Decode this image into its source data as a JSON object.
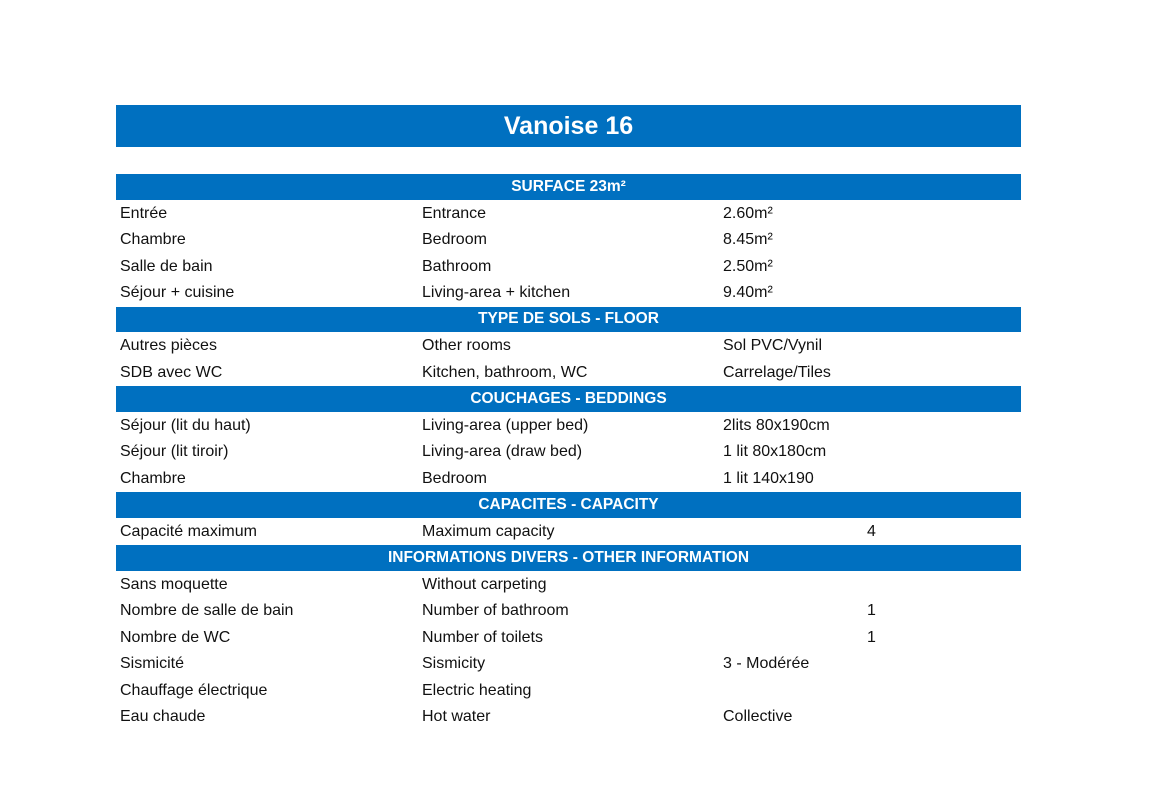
{
  "title": "Vanoise 16",
  "sections": [
    {
      "header": "SURFACE 23m²",
      "rows": [
        {
          "fr": "Entrée",
          "en": "Entrance",
          "value": "2.60m²",
          "count": ""
        },
        {
          "fr": "Chambre",
          "en": "Bedroom",
          "value": "8.45m²",
          "count": ""
        },
        {
          "fr": "Salle de bain",
          "en": "Bathroom",
          "value": "2.50m²",
          "count": ""
        },
        {
          "fr": "Séjour + cuisine",
          "en": "Living-area + kitchen",
          "value": "9.40m²",
          "count": ""
        }
      ]
    },
    {
      "header": "TYPE DE SOLS - FLOOR",
      "rows": [
        {
          "fr": "Autres pièces",
          "en": "Other rooms",
          "value": "Sol PVC/Vynil",
          "count": ""
        },
        {
          "fr": "SDB avec WC",
          "en": "Kitchen, bathroom, WC",
          "value": "Carrelage/Tiles",
          "count": ""
        }
      ]
    },
    {
      "header": "COUCHAGES - BEDDINGS",
      "rows": [
        {
          "fr": "Séjour (lit du haut)",
          "en": "Living-area (upper bed)",
          "value": "2lits 80x190cm",
          "count": ""
        },
        {
          "fr": "Séjour (lit tiroir)",
          "en": "Living-area (draw bed)",
          "value": "1 lit 80x180cm",
          "count": ""
        },
        {
          "fr": "Chambre",
          "en": "Bedroom",
          "value": "1 lit 140x190",
          "count": ""
        }
      ]
    },
    {
      "header": "CAPACITES - CAPACITY",
      "rows": [
        {
          "fr": "Capacité maximum",
          "en": "Maximum capacity",
          "value": "",
          "count": "4"
        }
      ]
    },
    {
      "header": "INFORMATIONS DIVERS - OTHER INFORMATION",
      "rows": [
        {
          "fr": "Sans moquette",
          "en": "Without carpeting",
          "value": "",
          "count": ""
        },
        {
          "fr": "Nombre de salle de bain",
          "en": "Number of bathroom",
          "value": "",
          "count": "1"
        },
        {
          "fr": "Nombre de WC",
          "en": "Number of toilets",
          "value": "",
          "count": "1"
        },
        {
          "fr": "Sismicité",
          "en": "Sismicity",
          "value": "3 - Modérée",
          "count": ""
        },
        {
          "fr": "Chauffage électrique",
          "en": "Electric heating",
          "value": "",
          "count": ""
        },
        {
          "fr": "Eau chaude",
          "en": "Hot water",
          "value": "Collective",
          "count": ""
        }
      ]
    }
  ],
  "colors": {
    "header_bg": "#0070c0",
    "header_text": "#ffffff"
  }
}
